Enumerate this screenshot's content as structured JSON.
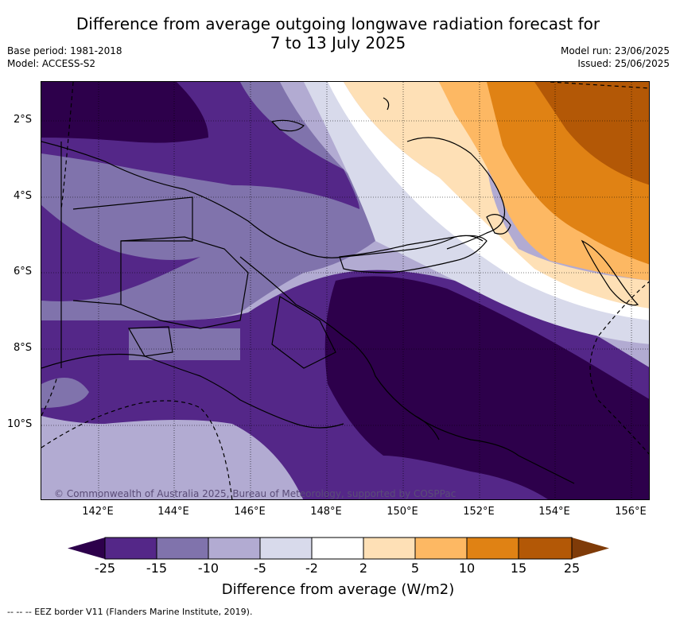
{
  "title_line1": "Difference from average outgoing longwave radiation forecast for",
  "title_line2": "7 to 13 July 2025",
  "base_period": "Base period: 1981-2018",
  "model": "Model: ACCESS-S2",
  "model_run": "Model run: 23/06/2025",
  "issued": "Issued: 25/06/2025",
  "lat_labels": [
    "2°S",
    "4°S",
    "6°S",
    "8°S",
    "10°S"
  ],
  "lon_labels": [
    "142°E",
    "144°E",
    "146°E",
    "148°E",
    "150°E",
    "152°E",
    "154°E",
    "156°E"
  ],
  "copyright": "© Commonwealth of Australia 2025, Bureau of Meteorology, supported by COSPPac",
  "colorbar": {
    "ticks": [
      "-25",
      "-15",
      "-10",
      "-5",
      "-2",
      "2",
      "5",
      "10",
      "15",
      "25"
    ],
    "colors": [
      "#2d004b",
      "#542788",
      "#8073ac",
      "#b2abd2",
      "#d8daeb",
      "#ffffff",
      "#fee0b6",
      "#fdb863",
      "#e08214",
      "#b35806",
      "#7f3b08"
    ],
    "label": "Difference from average (W/m2)"
  },
  "footnote": "-- -- -- EEZ border V11 (Flanders Marine Institute, 2019)."
}
